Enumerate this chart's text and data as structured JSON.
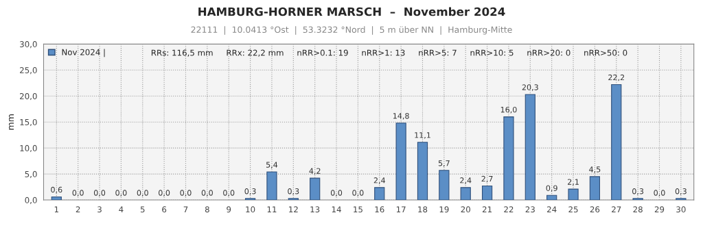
{
  "chart_data": {
    "type": "bar",
    "title": "HAMBURG-HORNER MARSCH  –  November 2024",
    "subtitle": "22111  |  10.0413 °Ost  |  53.3232 °Nord  |  5 m über NN  |  Hamburg-Mitte",
    "ylabel": "mm",
    "categories": [
      "1",
      "2",
      "3",
      "4",
      "5",
      "6",
      "7",
      "8",
      "9",
      "10",
      "11",
      "12",
      "13",
      "14",
      "15",
      "16",
      "17",
      "18",
      "19",
      "20",
      "21",
      "22",
      "23",
      "24",
      "25",
      "26",
      "27",
      "28",
      "29",
      "30"
    ],
    "series": [
      {
        "name": "Nov 2024 |",
        "color": "#5b8ec6",
        "values": [
          0.6,
          0,
          0,
          0,
          0,
          0,
          0,
          0,
          0,
          0.3,
          5.4,
          0.3,
          4.2,
          0,
          0,
          2.4,
          14.8,
          11.1,
          5.7,
          2.4,
          2.7,
          16.0,
          20.3,
          0.9,
          2.1,
          4.5,
          22.2,
          0.3,
          0,
          0.3
        ],
        "value_labels": [
          "0,6",
          "0,0",
          "0,0",
          "0,0",
          "0,0",
          "0,0",
          "0,0",
          "0,0",
          "0,0",
          "0,3",
          "5,4",
          "0,3",
          "4,2",
          "0,0",
          "0,0",
          "2,4",
          "14,8",
          "11,1",
          "5,7",
          "2,4",
          "2,7",
          "16,0",
          "20,3",
          "0,9",
          "2,1",
          "4,5",
          "22,2",
          "0,3",
          "0,0",
          "0,3"
        ]
      }
    ],
    "ylim": [
      0,
      30
    ],
    "yticks": [
      {
        "value": 0,
        "label": "0,0"
      },
      {
        "value": 5,
        "label": "5,0"
      },
      {
        "value": 10,
        "label": "10,0"
      },
      {
        "value": 15,
        "label": "15,0"
      },
      {
        "value": 20,
        "label": "20,0"
      },
      {
        "value": 25,
        "label": "25,0"
      },
      {
        "value": 30,
        "label": "30,0"
      }
    ],
    "annotations": [
      "RRs: 116,5 mm     RRx: 22,2 mm     nRR>0.1: 19     nRR>1: 13     nRR>5: 7     nRR>10: 5     nRR>20: 0     nRR>50: 0"
    ],
    "grid": true,
    "legend": "top left"
  }
}
